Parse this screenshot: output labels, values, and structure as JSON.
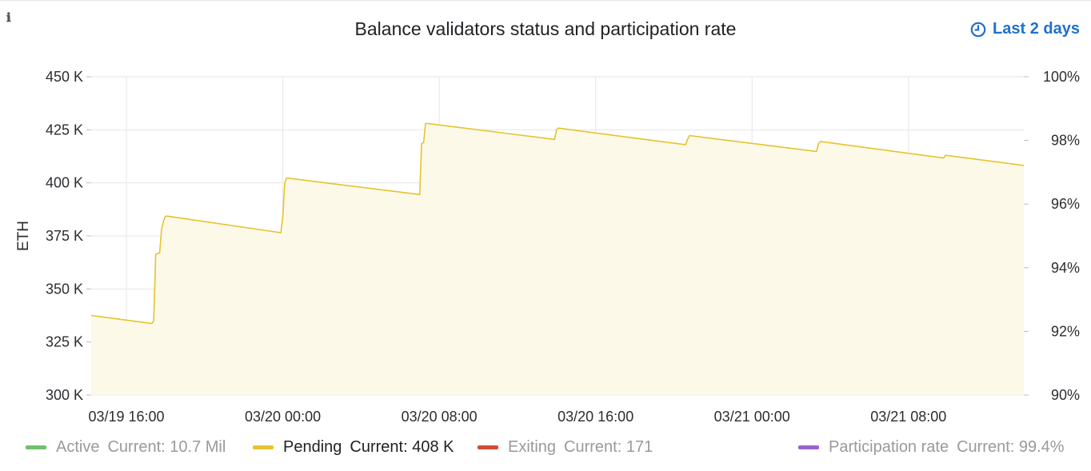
{
  "panel": {
    "info_icon": "info-icon",
    "title": "Balance validators status and participation rate",
    "time_range": "Last 2 days",
    "clock_icon": "clock-icon"
  },
  "chart_data": {
    "type": "area",
    "title": "Balance validators status and participation rate",
    "ylabel": "ETH",
    "ylim": [
      300000,
      450000
    ],
    "y_ticks": [
      "300 K",
      "325 K",
      "350 K",
      "375 K",
      "400 K",
      "425 K",
      "450 K"
    ],
    "y_tick_values": [
      300000,
      325000,
      350000,
      375000,
      400000,
      425000,
      450000
    ],
    "y2lim": [
      90,
      100
    ],
    "y2_ticks": [
      "90%",
      "92%",
      "94%",
      "96%",
      "98%",
      "100%"
    ],
    "y2_tick_values": [
      90,
      92,
      94,
      96,
      98,
      100
    ],
    "x_ticks": [
      "03/19 16:00",
      "03/20 00:00",
      "03/20 08:00",
      "03/20 16:00",
      "03/21 00:00",
      "03/21 08:00"
    ],
    "x_tick_hours": [
      16,
      24,
      32,
      40,
      48,
      56
    ],
    "xlim_hours": [
      14.2,
      61.9
    ],
    "grid": true,
    "legend_position": "bottom",
    "series": [
      {
        "name": "Pending",
        "color": "#e5c32e",
        "fill": "#fdf9e8",
        "x_hours": [
          14.2,
          17.3,
          17.4,
          17.5,
          17.7,
          17.8,
          17.9,
          18.0,
          18.1,
          23.9,
          24.0,
          24.1,
          24.2,
          31.0,
          31.1,
          31.2,
          31.3,
          31.4,
          37.9,
          38.0,
          38.1,
          44.6,
          44.7,
          44.8,
          51.3,
          51.4,
          51.5,
          57.8,
          57.9,
          61.9
        ],
        "values": [
          337500,
          333700,
          335000,
          366400,
          367000,
          378000,
          382000,
          384300,
          384300,
          376500,
          384000,
          400000,
          402300,
          394500,
          418500,
          419000,
          428000,
          428000,
          420500,
          425000,
          425800,
          418000,
          420500,
          422300,
          414800,
          418500,
          419500,
          411700,
          413000,
          408200
        ]
      }
    ]
  },
  "legend": [
    {
      "name": "Active",
      "current": "Current: 10.7 Mil",
      "color": "#73bf69",
      "hidden": true
    },
    {
      "name": "Pending",
      "current": "Current: 408 K",
      "color": "#e5c32e",
      "hidden": false
    },
    {
      "name": "Exiting",
      "current": "Current: 171",
      "color": "#d44a3a",
      "hidden": true
    },
    {
      "name": "Participation rate",
      "current": "Current: 99.4%",
      "color": "#9c5fcf",
      "hidden": true
    }
  ]
}
